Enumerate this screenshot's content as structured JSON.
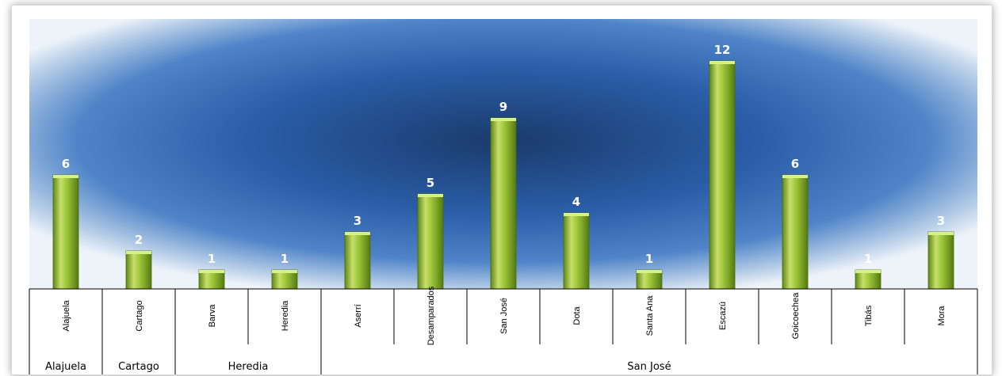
{
  "chart_data": {
    "type": "bar",
    "categories": [
      "Alajuela",
      "Cartago",
      "Barva",
      "Heredia",
      "Aserrí",
      "Desamparados",
      "San José",
      "Dota",
      "Santa Ana",
      "Escazú",
      "Goicoechea",
      "Tibás",
      "Mora"
    ],
    "values": [
      6,
      2,
      1,
      1,
      3,
      5,
      9,
      4,
      1,
      12,
      6,
      1,
      3
    ],
    "groups": [
      {
        "label": "Alajuela",
        "span": 1
      },
      {
        "label": "Cartago",
        "span": 1
      },
      {
        "label": "Heredia",
        "span": 2
      },
      {
        "label": "San José",
        "span": 9
      }
    ],
    "ylim": [
      0,
      12
    ],
    "data_labels": true,
    "grid": false,
    "colors": {
      "bar": "#8bb52a",
      "bar_light": "#c6e06a",
      "bar_dark": "#5e8617",
      "bg_center": "#1d3f72",
      "bg_edge": "#ffffff"
    }
  }
}
